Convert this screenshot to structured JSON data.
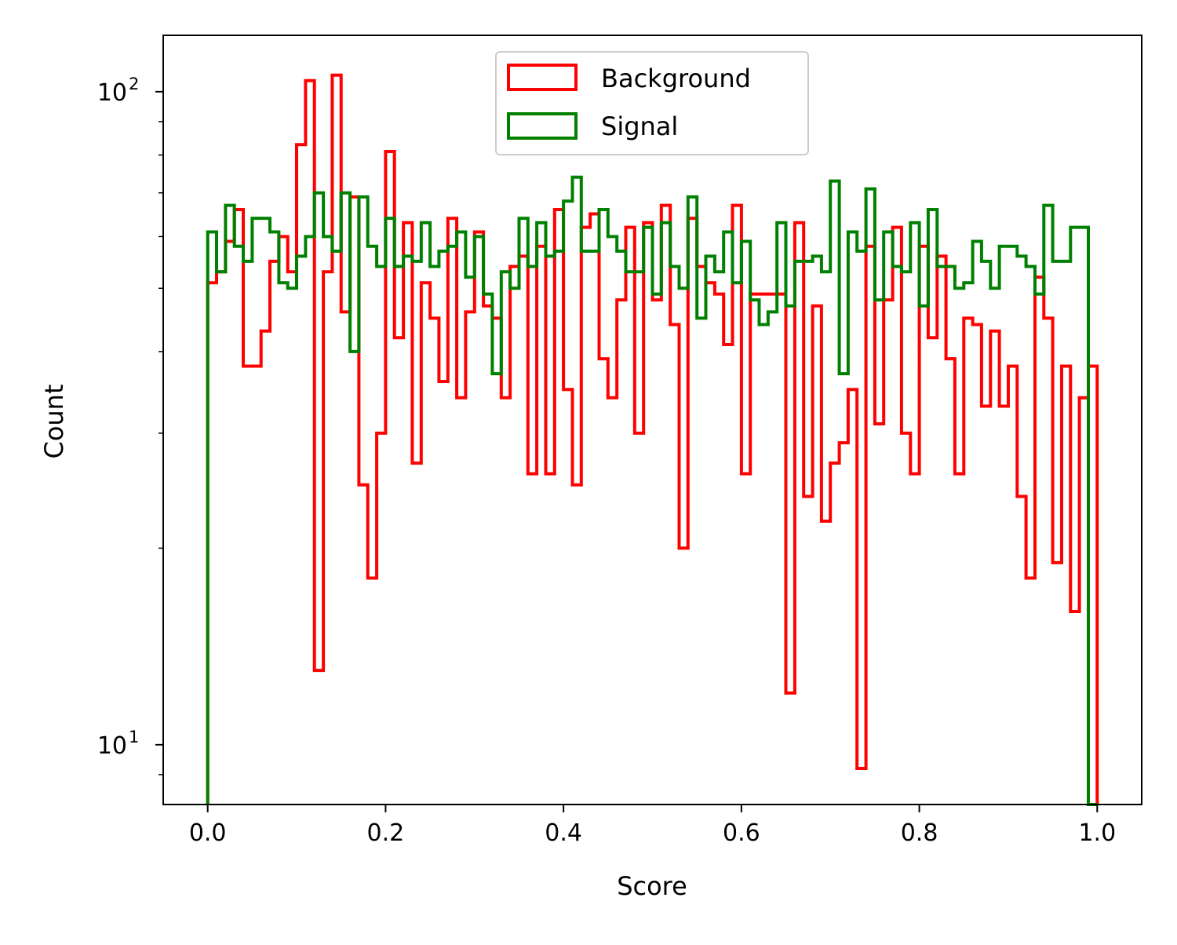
{
  "chart_data": {
    "type": "histogram",
    "bins": {
      "start": 0.0,
      "end": 1.0,
      "count": 100
    },
    "xlabel": "Score",
    "ylabel": "Count",
    "xscale": "linear",
    "yscale": "log",
    "xlim": [
      -0.05,
      1.05
    ],
    "ylim": [
      8.1,
      122
    ],
    "xticks": [
      0.0,
      0.2,
      0.4,
      0.6,
      0.8,
      1.0
    ],
    "xtick_labels": [
      "0.0",
      "0.2",
      "0.4",
      "0.6",
      "0.8",
      "1.0"
    ],
    "yticks": [
      10,
      100
    ],
    "ytick_labels": [
      {
        "base": "10",
        "exp": "1"
      },
      {
        "base": "10",
        "exp": "2"
      }
    ],
    "grid": false,
    "legend_position": "upper-center",
    "series": [
      {
        "name": "Background",
        "color": "#ff0000",
        "values": [
          51,
          53,
          59,
          66,
          38,
          38,
          43,
          55,
          60,
          53,
          83,
          104,
          13,
          53,
          106,
          46,
          69,
          25,
          18,
          30,
          81,
          42,
          63,
          27,
          51,
          45,
          36,
          64,
          34,
          46,
          61,
          47,
          45,
          34,
          54,
          56,
          26,
          58,
          26,
          66,
          35,
          25,
          62,
          65,
          39,
          34,
          48,
          62,
          30,
          63,
          48,
          67,
          44,
          20,
          64,
          54,
          51,
          49,
          41,
          67,
          26,
          49,
          49,
          49,
          49,
          12,
          63,
          24,
          47,
          22,
          27,
          29,
          35,
          9.2,
          58,
          31,
          48,
          62,
          30,
          26,
          58,
          42,
          56,
          39,
          26,
          45,
          44,
          33,
          43,
          33,
          38,
          24,
          18,
          52,
          45,
          19,
          38,
          16,
          34,
          38
        ]
      },
      {
        "name": "Signal",
        "color": "#008000",
        "values": [
          61,
          53,
          67,
          58,
          55,
          64,
          64,
          61,
          51,
          50,
          56,
          60,
          70,
          60,
          57,
          70,
          40,
          69,
          58,
          54,
          64,
          54,
          56,
          55,
          63,
          54,
          57,
          58,
          61,
          52,
          60,
          49,
          37,
          53,
          50,
          64,
          54,
          63,
          56,
          57,
          68,
          74,
          57,
          57,
          66,
          60,
          57,
          53,
          53,
          62,
          49,
          63,
          54,
          50,
          69,
          45,
          56,
          53,
          61,
          51,
          59,
          48,
          44,
          46,
          63,
          47,
          55,
          55,
          56,
          53,
          73,
          37,
          61,
          57,
          71,
          48,
          61,
          54,
          53,
          63,
          47,
          66,
          54,
          54,
          50,
          51,
          59,
          55,
          50,
          58,
          58,
          56,
          54,
          49,
          67,
          55,
          55,
          62,
          62,
          8.1
        ]
      }
    ]
  }
}
